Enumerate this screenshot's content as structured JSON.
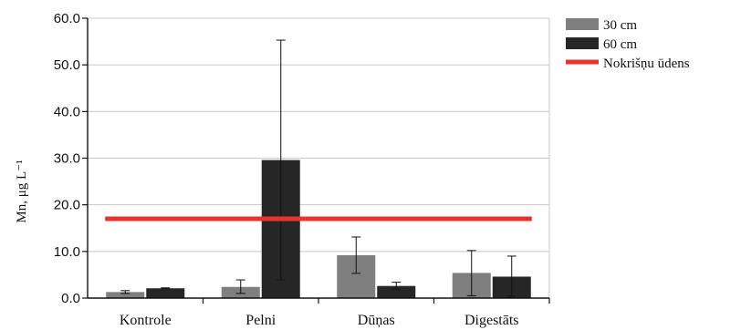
{
  "chart_data": {
    "type": "bar",
    "ylabel": "Mn, μg L⁻¹",
    "ylim": [
      0,
      60
    ],
    "yticks": [
      "0.0",
      "10.0",
      "20.0",
      "30.0",
      "40.0",
      "50.0",
      "60.0"
    ],
    "grid": true,
    "legend": "right",
    "categories": [
      "Kontrole",
      "Pelni",
      "Dūņas",
      "Digestāts"
    ],
    "series": [
      {
        "name": "30 cm",
        "color": "#7f7f7f",
        "values": [
          1.3,
          2.4,
          9.2,
          5.4
        ],
        "err_low": [
          1.0,
          1.0,
          5.3,
          0.5
        ],
        "err_high": [
          1.6,
          3.9,
          13.1,
          10.2
        ]
      },
      {
        "name": "60 cm",
        "color": "#262626",
        "values": [
          2.1,
          29.6,
          2.6,
          4.6
        ],
        "err_low": [
          2.0,
          3.9,
          1.9,
          0.4
        ],
        "err_high": [
          2.2,
          55.3,
          3.4,
          9.0
        ]
      }
    ],
    "reference_line": {
      "name": "Nokrišņu ūdens",
      "value": 17.0,
      "color": "#e8322e"
    }
  }
}
